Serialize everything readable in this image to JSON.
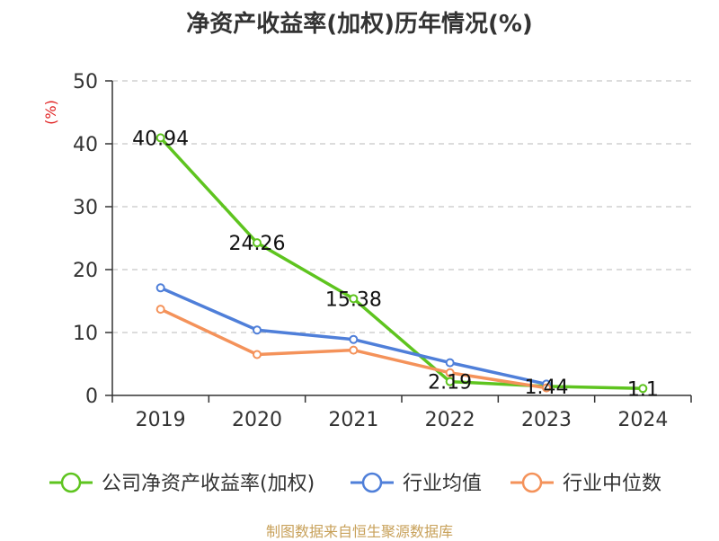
{
  "title": "净资产收益率(加权)历年情况(%)",
  "source": "制图数据来自恒生聚源数据库",
  "chart_data": {
    "type": "line",
    "ylabel": "(%)",
    "ylim": [
      0,
      50
    ],
    "yticks": [
      "0",
      "10",
      "20",
      "30",
      "40",
      "50"
    ],
    "x": [
      "2019",
      "2020",
      "2021",
      "2022",
      "2023",
      "2024"
    ],
    "grid": true,
    "legend_position": "bottom",
    "series": [
      {
        "name": "公司净资产收益率(加权)",
        "color": "#5ec41f",
        "values": [
          40.94,
          24.26,
          15.38,
          2.19,
          1.44,
          1.1
        ],
        "labels": [
          "40.94",
          "24.26",
          "15.38",
          "2.19",
          "1.44",
          "1.1"
        ]
      },
      {
        "name": "行业均值",
        "color": "#4f7fd9",
        "values": [
          17.1,
          10.4,
          8.9,
          5.2,
          1.8,
          null
        ]
      },
      {
        "name": "行业中位数",
        "color": "#f4925a",
        "values": [
          13.7,
          6.5,
          7.2,
          3.6,
          1.2,
          null
        ]
      }
    ]
  }
}
